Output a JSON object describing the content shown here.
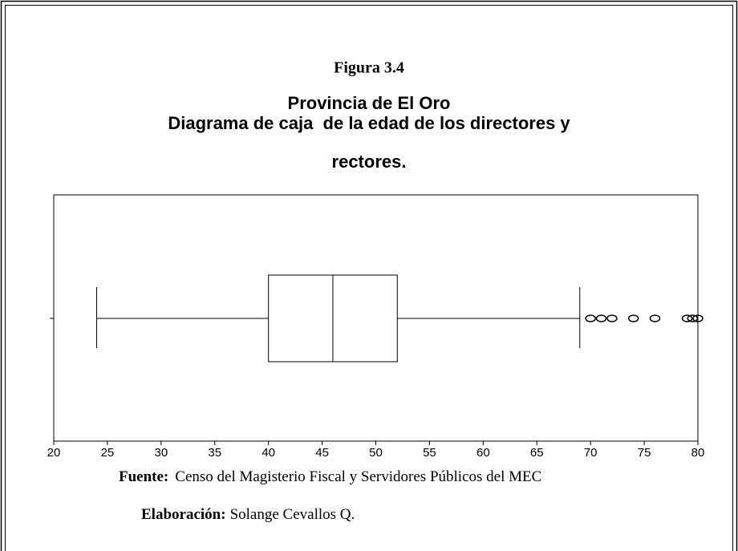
{
  "chart_data": {
    "type": "boxplot",
    "figure_label": "Figura 3.4",
    "title": [
      "Provincia de El Oro",
      "Diagrama de caja  de la edad de los directores y",
      "rectores."
    ],
    "xlim": [
      20,
      80
    ],
    "xticks": [
      20,
      25,
      30,
      35,
      40,
      45,
      50,
      55,
      60,
      65,
      70,
      75,
      80
    ],
    "box": {
      "min": 24,
      "q1": 40,
      "median": 46,
      "q3": 52,
      "max": 69,
      "outliers": [
        70,
        71,
        72,
        74,
        76,
        79,
        79.5,
        80
      ]
    },
    "color": "#000000",
    "source_label": "Fuente:",
    "source": "Censo del Magisterio Fiscal y Servidores Públicos del MEC",
    "credit_label": "Elaboración:",
    "credit": "Solange Cevallos Q."
  }
}
